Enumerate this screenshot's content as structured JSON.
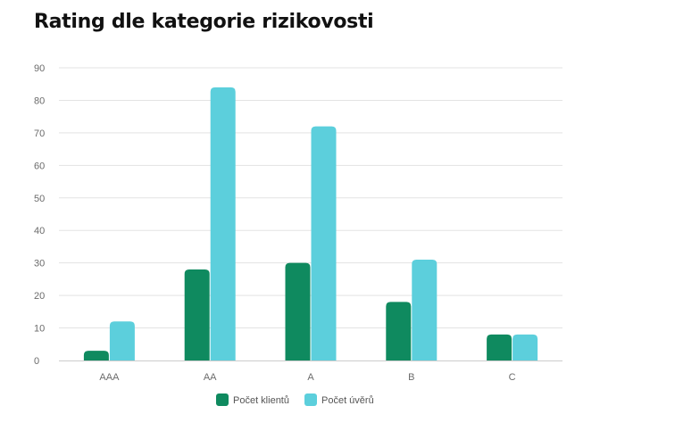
{
  "chart_data": {
    "type": "bar",
    "title": "Rating dle kategorie rizikovosti",
    "categories": [
      "AAA",
      "AA",
      "A",
      "B",
      "C"
    ],
    "series": [
      {
        "name": "Počet klientů",
        "values": [
          3,
          28,
          30,
          18,
          8
        ],
        "color": "#0f8a5f"
      },
      {
        "name": "Počet úvěrů",
        "values": [
          12,
          84,
          72,
          31,
          8
        ],
        "color": "#5ccfdc"
      }
    ],
    "xlabel": "",
    "ylabel": "",
    "ylim": [
      0,
      90
    ],
    "yticks": [
      0,
      10,
      20,
      30,
      40,
      50,
      60,
      70,
      80,
      90
    ],
    "grid": true,
    "legend_position": "bottom"
  }
}
